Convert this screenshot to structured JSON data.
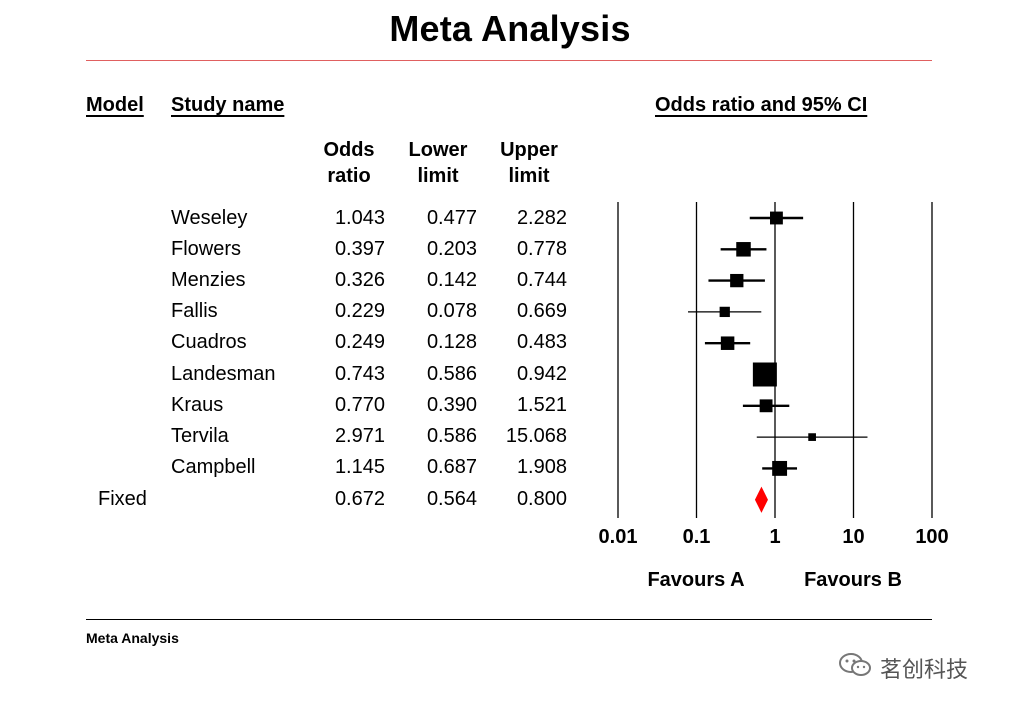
{
  "title": "Meta Analysis",
  "headers": {
    "model": "Model",
    "study_name": "Study name",
    "plot_title": "Odds ratio and 95% CI",
    "odds_ratio_l1": "Odds",
    "odds_ratio_l2": "ratio",
    "lower_l1": "Lower",
    "lower_l2": "limit",
    "upper_l1": "Upper",
    "upper_l2": "limit"
  },
  "footer": "Meta Analysis",
  "watermark": "茗创科技",
  "chart_data": {
    "type": "forest",
    "title": "Odds ratio and 95% CI",
    "x_scale": "log",
    "xlim": [
      0.01,
      100
    ],
    "x_ticks": [
      0.01,
      0.1,
      1,
      10,
      100
    ],
    "x_tick_labels": [
      "0.01",
      "0.1",
      "1",
      "10",
      "100"
    ],
    "xlabel_left": "Favours A",
    "xlabel_right": "Favours B",
    "studies": [
      {
        "name": "Weseley",
        "or": "1.043",
        "lower": "0.477",
        "upper": "2.282",
        "weight": 0.22
      },
      {
        "name": "Flowers",
        "or": "0.397",
        "lower": "0.203",
        "upper": "0.778",
        "weight": 0.3
      },
      {
        "name": "Menzies",
        "or": "0.326",
        "lower": "0.142",
        "upper": "0.744",
        "weight": 0.24
      },
      {
        "name": "Fallis",
        "or": "0.229",
        "lower": "0.078",
        "upper": "0.669",
        "weight": 0.12
      },
      {
        "name": "Cuadros",
        "or": "0.249",
        "lower": "0.128",
        "upper": "0.483",
        "weight": 0.25
      },
      {
        "name": "Landesman",
        "or": "0.743",
        "lower": "0.586",
        "upper": "0.942",
        "weight": 1.0
      },
      {
        "name": "Kraus",
        "or": "0.770",
        "lower": "0.390",
        "upper": "1.521",
        "weight": 0.22
      },
      {
        "name": "Tervila",
        "or": "2.971",
        "lower": "0.586",
        "upper": "15.068",
        "weight": 0.05
      },
      {
        "name": "Campbell",
        "or": "1.145",
        "lower": "0.687",
        "upper": "1.908",
        "weight": 0.32
      }
    ],
    "summary": {
      "model": "Fixed",
      "or": "0.672",
      "lower": "0.564",
      "upper": "0.800",
      "color": "#ff0000"
    }
  }
}
